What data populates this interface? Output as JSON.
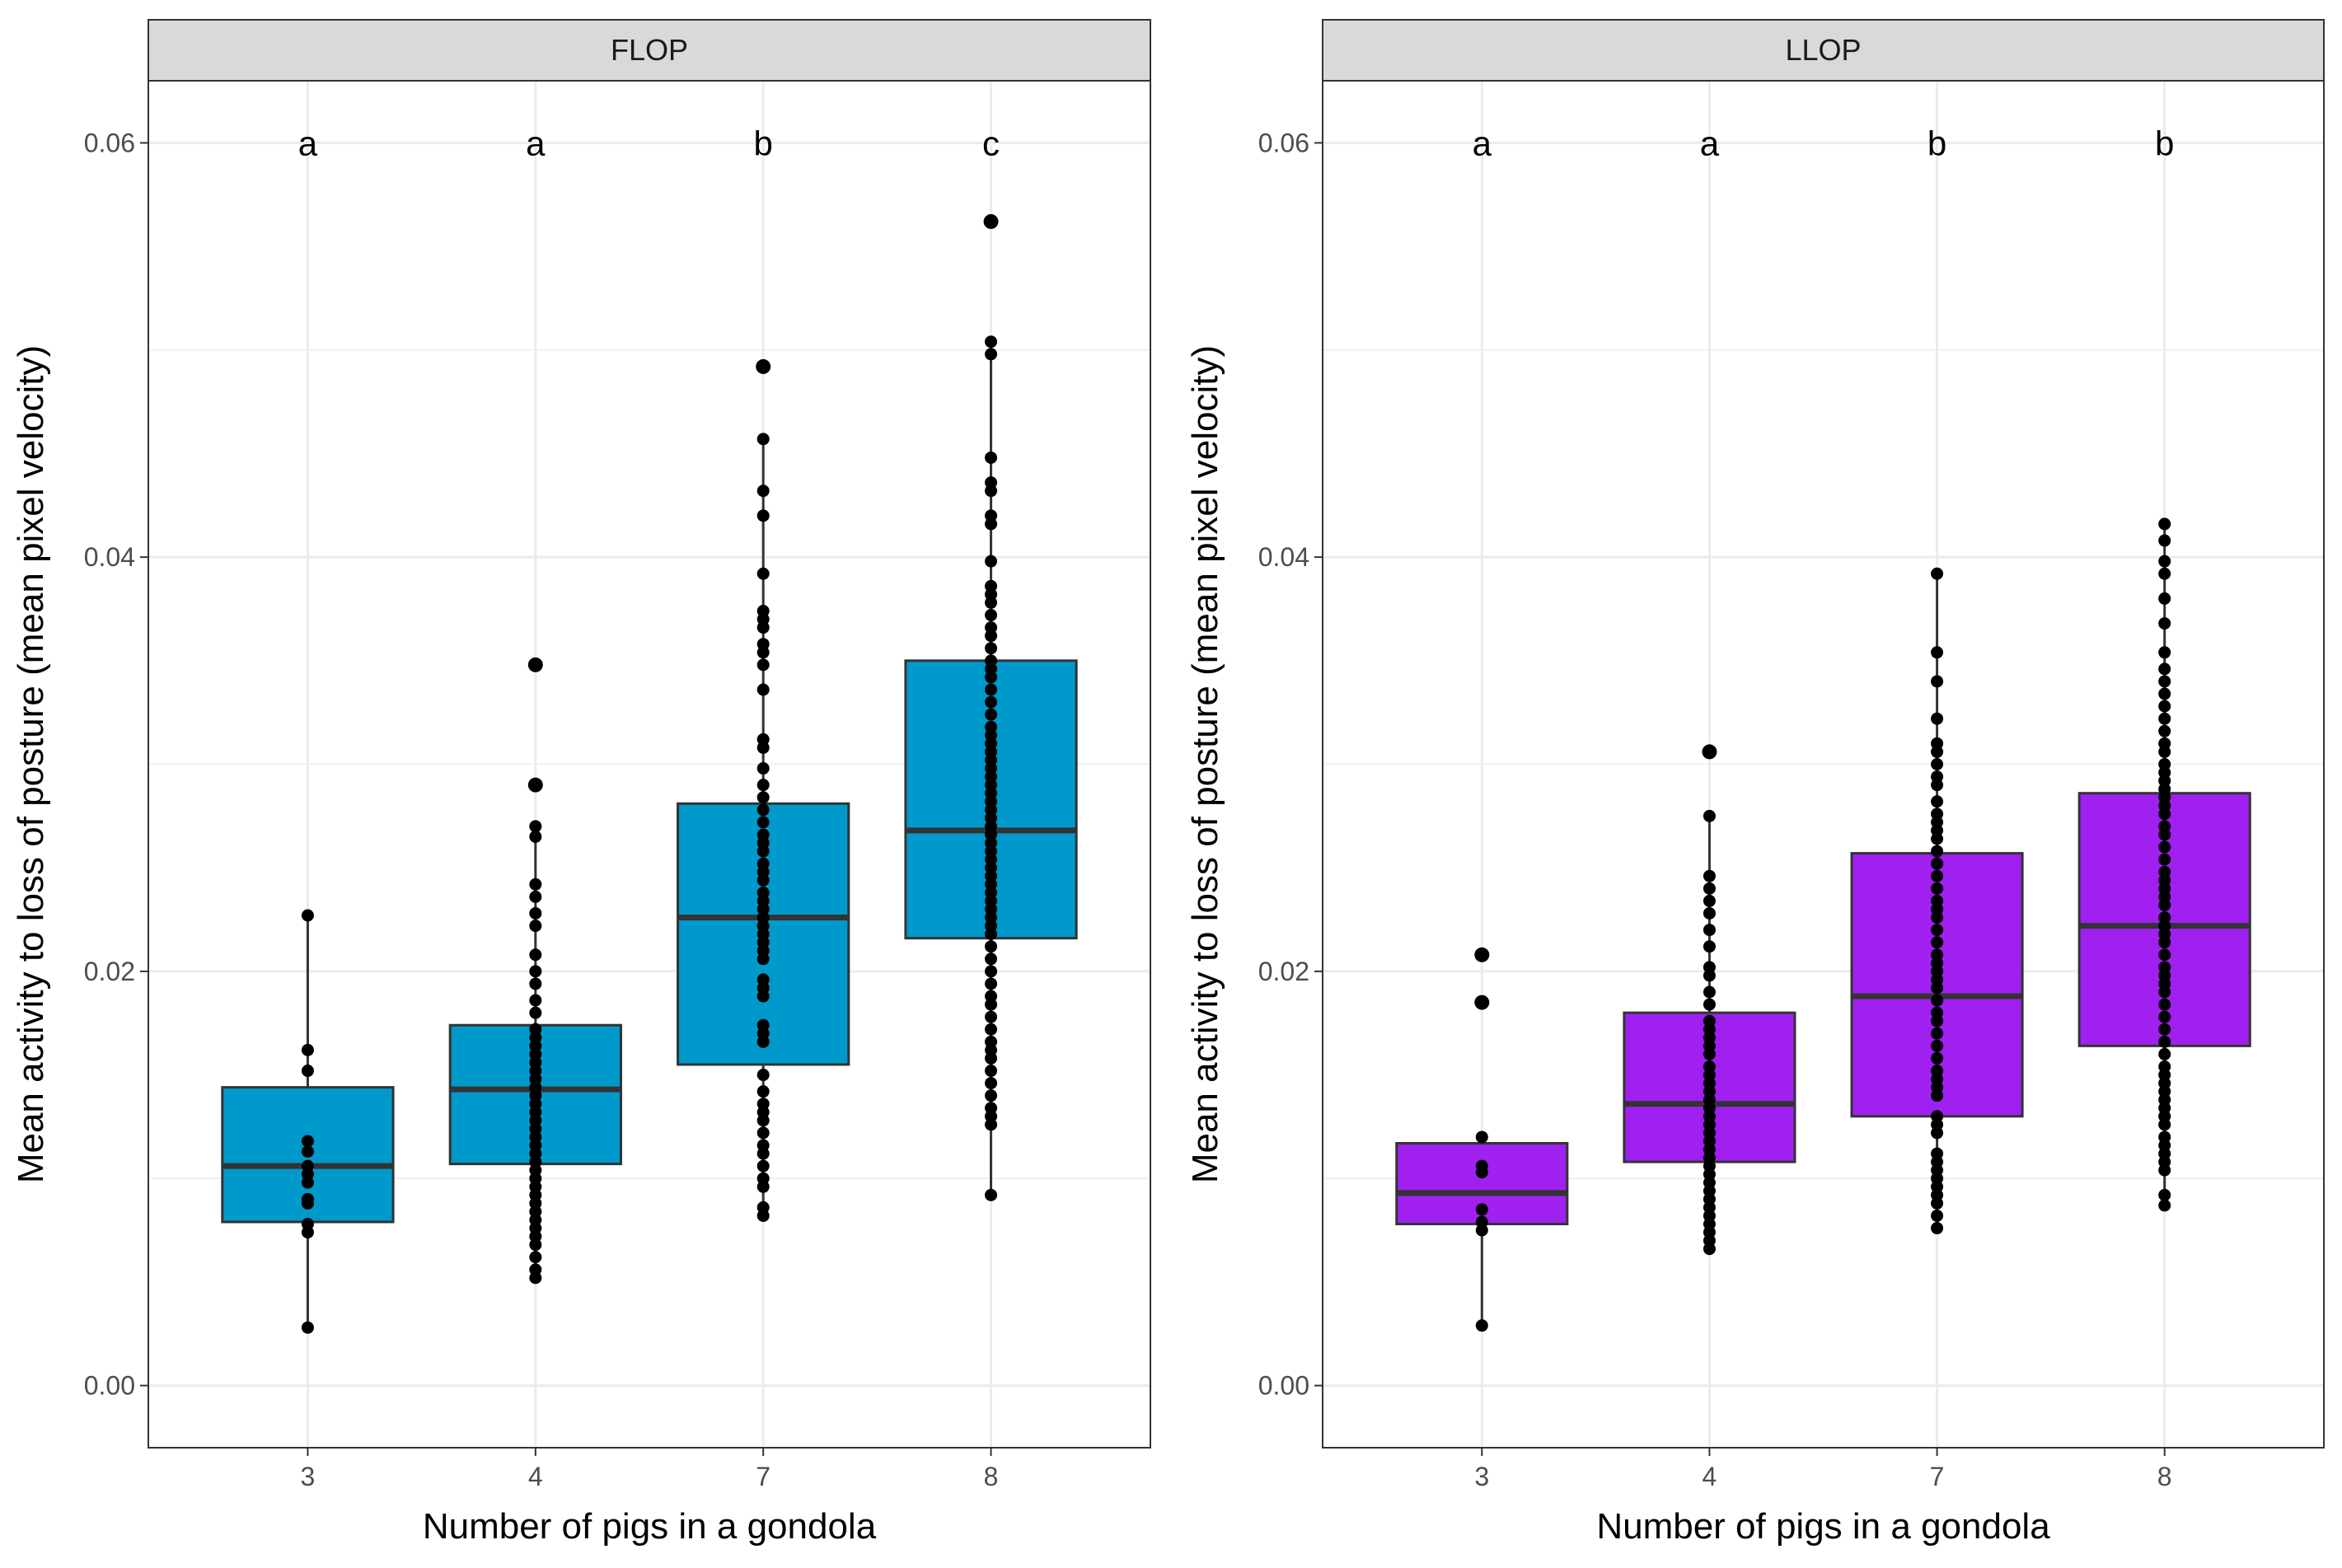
{
  "chart_data": [
    {
      "type": "box",
      "panel": "FLOP",
      "strip_label": "FLOP",
      "xlabel": "Number of pigs in a gondola",
      "ylabel": "Mean activity to loss of posture (mean pixel velocity)",
      "ylim": [
        -0.003,
        0.063
      ],
      "yticks": [
        0.0,
        0.02,
        0.04,
        0.06
      ],
      "ytick_labels": [
        "0.00",
        "0.02",
        "0.04",
        "0.06"
      ],
      "categories": [
        "3",
        "4",
        "7",
        "8"
      ],
      "fill_color": "#0099CC",
      "letters": [
        "a",
        "a",
        "b",
        "c"
      ],
      "boxes": [
        {
          "q1": 0.0079,
          "median": 0.0106,
          "q3": 0.0144,
          "whisker_low": 0.0028,
          "whisker_high": 0.0227,
          "points": [
            0.0227,
            0.0162,
            0.0152,
            0.0118,
            0.0113,
            0.0106,
            0.0102,
            0.0098,
            0.009,
            0.0088,
            0.0078,
            0.0074,
            0.0028
          ]
        },
        {
          "q1": 0.0107,
          "median": 0.0143,
          "q3": 0.0174,
          "whisker_low": 0.0052,
          "whisker_high": 0.027,
          "points": [
            0.0348,
            0.029,
            0.027,
            0.0265,
            0.0242,
            0.0236,
            0.0228,
            0.0222,
            0.0208,
            0.02,
            0.0194,
            0.0186,
            0.018,
            0.0172,
            0.0168,
            0.0164,
            0.016,
            0.0156,
            0.0152,
            0.0148,
            0.0144,
            0.014,
            0.0136,
            0.0132,
            0.0128,
            0.0124,
            0.012,
            0.0116,
            0.0112,
            0.0108,
            0.0104,
            0.01,
            0.0096,
            0.0092,
            0.0088,
            0.0084,
            0.008,
            0.0076,
            0.0072,
            0.0068,
            0.0062,
            0.0056,
            0.0052
          ]
        },
        {
          "q1": 0.0155,
          "median": 0.0226,
          "q3": 0.0281,
          "whisker_low": 0.0082,
          "whisker_high": 0.0457,
          "points": [
            0.0492,
            0.0457,
            0.0432,
            0.042,
            0.0392,
            0.0374,
            0.037,
            0.0366,
            0.0358,
            0.0354,
            0.0348,
            0.0336,
            0.0312,
            0.0308,
            0.0298,
            0.029,
            0.0284,
            0.0278,
            0.0272,
            0.0266,
            0.0262,
            0.0258,
            0.0252,
            0.0248,
            0.0244,
            0.0238,
            0.0234,
            0.023,
            0.0226,
            0.0222,
            0.0218,
            0.0214,
            0.021,
            0.0206,
            0.0196,
            0.0192,
            0.0188,
            0.0174,
            0.017,
            0.0166,
            0.015,
            0.0142,
            0.0136,
            0.0132,
            0.0128,
            0.0122,
            0.0116,
            0.0112,
            0.0106,
            0.01,
            0.0096,
            0.0086,
            0.0082
          ]
        },
        {
          "q1": 0.0216,
          "median": 0.0268,
          "q3": 0.035,
          "whisker_low": 0.0092,
          "whisker_high": 0.0504,
          "points": [
            0.0562,
            0.0504,
            0.0498,
            0.0448,
            0.0436,
            0.0432,
            0.042,
            0.0416,
            0.0398,
            0.0386,
            0.0382,
            0.0378,
            0.0372,
            0.0366,
            0.0362,
            0.0356,
            0.035,
            0.0346,
            0.0342,
            0.0336,
            0.033,
            0.0324,
            0.0318,
            0.0314,
            0.031,
            0.0306,
            0.0302,
            0.0298,
            0.0294,
            0.029,
            0.0286,
            0.0282,
            0.0278,
            0.0274,
            0.027,
            0.0266,
            0.0262,
            0.0258,
            0.0254,
            0.025,
            0.0246,
            0.0242,
            0.0238,
            0.0234,
            0.023,
            0.0226,
            0.0222,
            0.0218,
            0.0212,
            0.0206,
            0.02,
            0.0194,
            0.0188,
            0.0184,
            0.0178,
            0.0172,
            0.0166,
            0.0162,
            0.0158,
            0.0152,
            0.0146,
            0.014,
            0.0134,
            0.013,
            0.0126,
            0.0092
          ]
        }
      ]
    },
    {
      "type": "box",
      "panel": "LLOP",
      "strip_label": "LLOP",
      "xlabel": "Number of pigs in a gondola",
      "ylabel": "Mean activity to loss of posture (mean pixel velocity)",
      "ylim": [
        -0.003,
        0.063
      ],
      "yticks": [
        0.0,
        0.02,
        0.04,
        0.06
      ],
      "ytick_labels": [
        "0.00",
        "0.02",
        "0.04",
        "0.06"
      ],
      "categories": [
        "3",
        "4",
        "7",
        "8"
      ],
      "fill_color": "#A020F0",
      "letters": [
        "a",
        "a",
        "b",
        "b"
      ],
      "boxes": [
        {
          "q1": 0.0078,
          "median": 0.0093,
          "q3": 0.0117,
          "whisker_low": 0.0029,
          "whisker_high": 0.012,
          "points": [
            0.0208,
            0.0185,
            0.012,
            0.0106,
            0.0103,
            0.0085,
            0.0079,
            0.0075,
            0.0029
          ]
        },
        {
          "q1": 0.0108,
          "median": 0.0136,
          "q3": 0.018,
          "whisker_low": 0.0065,
          "whisker_high": 0.0275,
          "points": [
            0.0306,
            0.0275,
            0.0246,
            0.024,
            0.0234,
            0.0228,
            0.022,
            0.0212,
            0.0202,
            0.0198,
            0.019,
            0.0184,
            0.0176,
            0.0172,
            0.0168,
            0.0164,
            0.016,
            0.0154,
            0.015,
            0.0146,
            0.0142,
            0.0138,
            0.0134,
            0.013,
            0.0126,
            0.0122,
            0.0118,
            0.0114,
            0.011,
            0.0106,
            0.0102,
            0.0098,
            0.0094,
            0.009,
            0.0086,
            0.0082,
            0.0078,
            0.0074,
            0.007,
            0.0066
          ]
        },
        {
          "q1": 0.013,
          "median": 0.0188,
          "q3": 0.0257,
          "whisker_low": 0.0075,
          "whisker_high": 0.0392,
          "points": [
            0.0392,
            0.0354,
            0.034,
            0.0322,
            0.031,
            0.0306,
            0.03,
            0.0294,
            0.029,
            0.0282,
            0.0276,
            0.0272,
            0.0268,
            0.0264,
            0.0258,
            0.0252,
            0.0246,
            0.024,
            0.0234,
            0.023,
            0.0226,
            0.022,
            0.0214,
            0.0208,
            0.0204,
            0.02,
            0.0196,
            0.0192,
            0.0186,
            0.018,
            0.0176,
            0.017,
            0.0164,
            0.0158,
            0.0152,
            0.0148,
            0.0144,
            0.014,
            0.013,
            0.0126,
            0.0122,
            0.0112,
            0.0108,
            0.0104,
            0.01,
            0.0096,
            0.0092,
            0.0088,
            0.0082,
            0.0076
          ]
        },
        {
          "q1": 0.0164,
          "median": 0.0222,
          "q3": 0.0286,
          "whisker_low": 0.0087,
          "whisker_high": 0.0416,
          "points": [
            0.0416,
            0.0408,
            0.0398,
            0.0392,
            0.038,
            0.0368,
            0.0354,
            0.0346,
            0.034,
            0.0334,
            0.0328,
            0.0322,
            0.0316,
            0.031,
            0.0306,
            0.03,
            0.0296,
            0.0292,
            0.0288,
            0.0284,
            0.028,
            0.0276,
            0.027,
            0.0266,
            0.026,
            0.0254,
            0.0248,
            0.0244,
            0.024,
            0.0236,
            0.0232,
            0.0226,
            0.0222,
            0.0218,
            0.0214,
            0.0208,
            0.0202,
            0.0198,
            0.0194,
            0.019,
            0.0184,
            0.0178,
            0.0172,
            0.0166,
            0.016,
            0.0154,
            0.015,
            0.0146,
            0.0142,
            0.0138,
            0.0134,
            0.013,
            0.0126,
            0.012,
            0.0116,
            0.0112,
            0.0108,
            0.0104,
            0.0092,
            0.0087
          ]
        }
      ]
    }
  ]
}
